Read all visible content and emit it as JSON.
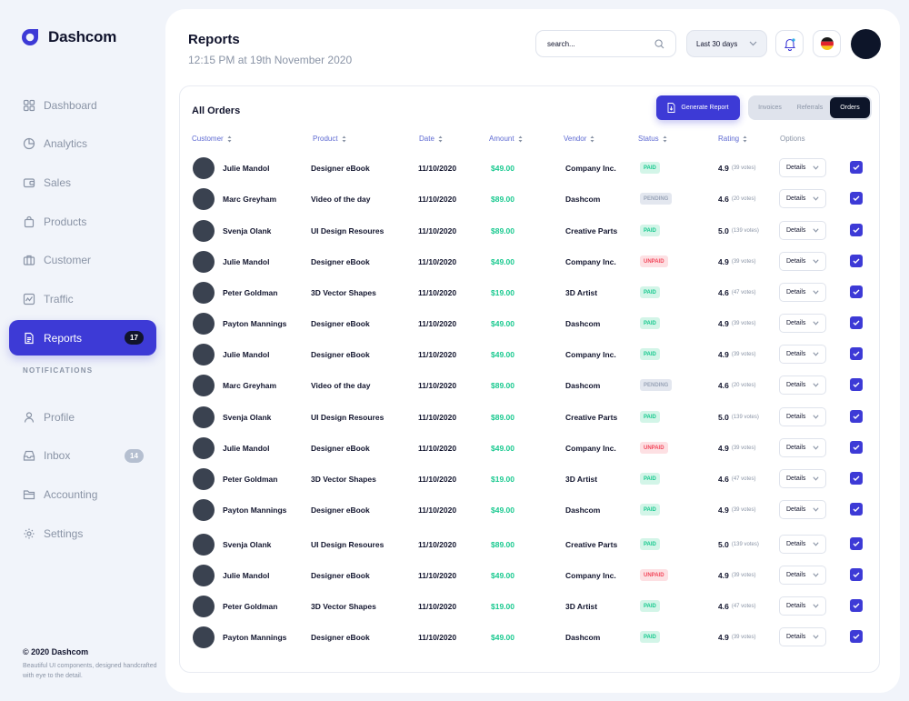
{
  "brand": {
    "name": "Dashcom",
    "color": "#3d3ad6"
  },
  "sidebar": {
    "items": [
      {
        "label": "Dashboard",
        "icon": "grid-icon"
      },
      {
        "label": "Analytics",
        "icon": "pie-chart-icon"
      },
      {
        "label": "Sales",
        "icon": "wallet-icon"
      },
      {
        "label": "Products",
        "icon": "bag-icon"
      },
      {
        "label": "Customer",
        "icon": "briefcase-icon"
      },
      {
        "label": "Traffic",
        "icon": "activity-icon"
      },
      {
        "label": "Reports",
        "icon": "document-icon",
        "badge": "17",
        "active": true
      }
    ],
    "section_label": "NOTIFICATIONS",
    "section_items": [
      {
        "label": "Profile",
        "icon": "user-icon"
      },
      {
        "label": "Inbox",
        "icon": "inbox-icon",
        "badge": "14"
      },
      {
        "label": "Accounting",
        "icon": "folder-icon"
      },
      {
        "label": "Settings",
        "icon": "gear-icon"
      }
    ],
    "footer_title": "© 2020 Dashcom",
    "footer_text": "Beautiful UI components, designed handcrafted with eye to the detail."
  },
  "header": {
    "title": "Reports",
    "subtitle": "12:15 PM at 19th November 2020",
    "search_placeholder": "search...",
    "range_label": "Last 30 days"
  },
  "orders": {
    "title": "All Orders",
    "generate_label": "Generate Report",
    "tabs": [
      "Invoices",
      "Referrals",
      "Orders"
    ],
    "active_tab": "Orders",
    "columns": [
      "Customer",
      "Product",
      "Date",
      "Amount",
      "Vendor",
      "Status",
      "Rating",
      "Options"
    ],
    "details_label": "Details",
    "rows": [
      {
        "customer": "Julie Mandol",
        "product": "Designer eBook",
        "date": "11/10/2020",
        "amount": "$49.00",
        "vendor": "Company Inc.",
        "status": "PAID",
        "rating": "4.9",
        "votes": "(39 votes)"
      },
      {
        "customer": "Marc Greyham",
        "product": "Video of the day",
        "date": "11/10/2020",
        "amount": "$89.00",
        "vendor": "Dashcom",
        "status": "PENDING",
        "rating": "4.6",
        "votes": "(20 votes)"
      },
      {
        "customer": "Svenja Olank",
        "product": "UI Design Resoures",
        "date": "11/10/2020",
        "amount": "$89.00",
        "vendor": "Creative Parts",
        "status": "PAID",
        "rating": "5.0",
        "votes": "(139 votes)"
      },
      {
        "customer": "Julie Mandol",
        "product": "Designer eBook",
        "date": "11/10/2020",
        "amount": "$49.00",
        "vendor": "Company Inc.",
        "status": "UNPAID",
        "rating": "4.9",
        "votes": "(39 votes)"
      },
      {
        "customer": "Peter Goldman",
        "product": "3D Vector Shapes",
        "date": "11/10/2020",
        "amount": "$19.00",
        "vendor": "3D Artist",
        "status": "PAID",
        "rating": "4.6",
        "votes": "(47 votes)"
      },
      {
        "customer": "Payton Mannings",
        "product": "Designer eBook",
        "date": "11/10/2020",
        "amount": "$49.00",
        "vendor": "Dashcom",
        "status": "PAID",
        "rating": "4.9",
        "votes": "(39 votes)"
      },
      {
        "customer": "Julie Mandol",
        "product": "Designer eBook",
        "date": "11/10/2020",
        "amount": "$49.00",
        "vendor": "Company Inc.",
        "status": "PAID",
        "rating": "4.9",
        "votes": "(39 votes)"
      },
      {
        "customer": "Marc Greyham",
        "product": "Video of the day",
        "date": "11/10/2020",
        "amount": "$89.00",
        "vendor": "Dashcom",
        "status": "PENDING",
        "rating": "4.6",
        "votes": "(20 votes)"
      },
      {
        "customer": "Svenja Olank",
        "product": "UI Design Resoures",
        "date": "11/10/2020",
        "amount": "$89.00",
        "vendor": "Creative Parts",
        "status": "PAID",
        "rating": "5.0",
        "votes": "(139 votes)"
      },
      {
        "customer": "Julie Mandol",
        "product": "Designer eBook",
        "date": "11/10/2020",
        "amount": "$49.00",
        "vendor": "Company Inc.",
        "status": "UNPAID",
        "rating": "4.9",
        "votes": "(39 votes)"
      },
      {
        "customer": "Peter Goldman",
        "product": "3D Vector Shapes",
        "date": "11/10/2020",
        "amount": "$19.00",
        "vendor": "3D Artist",
        "status": "PAID",
        "rating": "4.6",
        "votes": "(47 votes)"
      },
      {
        "customer": "Payton Mannings",
        "product": "Designer eBook",
        "date": "11/10/2020",
        "amount": "$49.00",
        "vendor": "Dashcom",
        "status": "PAID",
        "rating": "4.9",
        "votes": "(39 votes)"
      },
      {
        "customer": "Svenja Olank",
        "product": "UI Design Resoures",
        "date": "11/10/2020",
        "amount": "$89.00",
        "vendor": "Creative Parts",
        "status": "PAID",
        "rating": "5.0",
        "votes": "(139 votes)"
      },
      {
        "customer": "Julie Mandol",
        "product": "Designer eBook",
        "date": "11/10/2020",
        "amount": "$49.00",
        "vendor": "Company Inc.",
        "status": "UNPAID",
        "rating": "4.9",
        "votes": "(39 votes)"
      },
      {
        "customer": "Peter Goldman",
        "product": "3D Vector Shapes",
        "date": "11/10/2020",
        "amount": "$19.00",
        "vendor": "3D Artist",
        "status": "PAID",
        "rating": "4.6",
        "votes": "(47 votes)"
      },
      {
        "customer": "Payton Mannings",
        "product": "Designer eBook",
        "date": "11/10/2020",
        "amount": "$49.00",
        "vendor": "Dashcom",
        "status": "PAID",
        "rating": "4.9",
        "votes": "(39 votes)"
      }
    ]
  }
}
